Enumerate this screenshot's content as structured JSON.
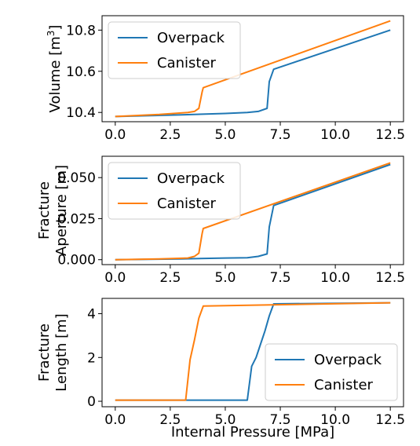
{
  "figure": {
    "xlabel": "Internal Pressure [MPa]"
  },
  "colors": {
    "overpack": "#1f77b4",
    "canister": "#ff7f0e",
    "axes": "#000000",
    "legend_border": "#cccccc",
    "background": "#ffffff"
  },
  "chart_data": [
    {
      "type": "line",
      "ylabel": "Volume [m3]",
      "ylabel_parts": {
        "text": "Volume [m",
        "sup": "3",
        "close": "]"
      },
      "xlim": [
        -0.6,
        13.1
      ],
      "ylim": [
        10.355,
        10.87
      ],
      "xticks": [
        0.0,
        2.5,
        5.0,
        7.5,
        10.0,
        12.5
      ],
      "xtick_labels": [
        "0.0",
        "2.5",
        "5.0",
        "7.5",
        "10.0",
        "12.5"
      ],
      "yticks": [
        10.4,
        10.6,
        10.8
      ],
      "ytick_labels": [
        "10.4",
        "10.6",
        "10.8"
      ],
      "legend_position": "upper-left",
      "series": [
        {
          "name": "Overpack",
          "color": "#1f77b4",
          "x": [
            0.0,
            3.0,
            5.0,
            6.0,
            6.5,
            6.9,
            7.0,
            7.2,
            12.5
          ],
          "y": [
            10.38,
            10.388,
            10.395,
            10.4,
            10.405,
            10.42,
            10.55,
            10.61,
            10.8
          ]
        },
        {
          "name": "Canister",
          "color": "#ff7f0e",
          "x": [
            0.0,
            2.0,
            3.3,
            3.6,
            3.8,
            3.95,
            4.0,
            12.5
          ],
          "y": [
            10.38,
            10.39,
            10.4,
            10.405,
            10.42,
            10.5,
            10.52,
            10.845
          ]
        }
      ]
    },
    {
      "type": "line",
      "ylabel": "Fracture Aperture [m]",
      "ylabel_lines": [
        "Fracture",
        "Aperture [m]"
      ],
      "xlim": [
        -0.6,
        13.1
      ],
      "ylim": [
        -0.003,
        0.063
      ],
      "xticks": [
        0.0,
        2.5,
        5.0,
        7.5,
        10.0,
        12.5
      ],
      "xtick_labels": [
        "0.0",
        "2.5",
        "5.0",
        "7.5",
        "10.0",
        "12.5"
      ],
      "yticks": [
        0.0,
        0.025,
        0.05
      ],
      "ytick_labels": [
        "0.000",
        "0.025",
        "0.050"
      ],
      "legend_position": "upper-left",
      "series": [
        {
          "name": "Overpack",
          "color": "#1f77b4",
          "x": [
            0.0,
            3.0,
            5.0,
            6.0,
            6.5,
            6.9,
            7.0,
            7.2,
            12.5
          ],
          "y": [
            0.0,
            0.0005,
            0.001,
            0.0012,
            0.002,
            0.0035,
            0.02,
            0.033,
            0.058
          ]
        },
        {
          "name": "Canister",
          "color": "#ff7f0e",
          "x": [
            0.0,
            2.0,
            3.3,
            3.6,
            3.8,
            3.95,
            4.0,
            12.5
          ],
          "y": [
            0.0,
            0.0005,
            0.001,
            0.002,
            0.004,
            0.016,
            0.019,
            0.059
          ]
        }
      ]
    },
    {
      "type": "line",
      "ylabel": "Fracture Length [m]",
      "ylabel_lines": [
        "Fracture",
        "Length [m]"
      ],
      "xlim": [
        -0.6,
        13.1
      ],
      "ylim": [
        -0.25,
        4.7
      ],
      "xticks": [
        0.0,
        2.5,
        5.0,
        7.5,
        10.0,
        12.5
      ],
      "xtick_labels": [
        "0.0",
        "2.5",
        "5.0",
        "7.5",
        "10.0",
        "12.5"
      ],
      "yticks": [
        0,
        2,
        4
      ],
      "ytick_labels": [
        "0",
        "2",
        "4"
      ],
      "legend_position": "lower-right",
      "series": [
        {
          "name": "Overpack",
          "color": "#1f77b4",
          "x": [
            0.0,
            6.0,
            6.2,
            6.4,
            6.6,
            6.8,
            7.0,
            7.2,
            12.5
          ],
          "y": [
            0.05,
            0.05,
            1.6,
            2.0,
            2.6,
            3.2,
            3.9,
            4.45,
            4.5
          ]
        },
        {
          "name": "Canister",
          "color": "#ff7f0e",
          "x": [
            0.0,
            3.2,
            3.4,
            3.6,
            3.8,
            4.0,
            12.5
          ],
          "y": [
            0.05,
            0.05,
            1.9,
            2.8,
            3.8,
            4.35,
            4.5
          ]
        }
      ]
    }
  ]
}
